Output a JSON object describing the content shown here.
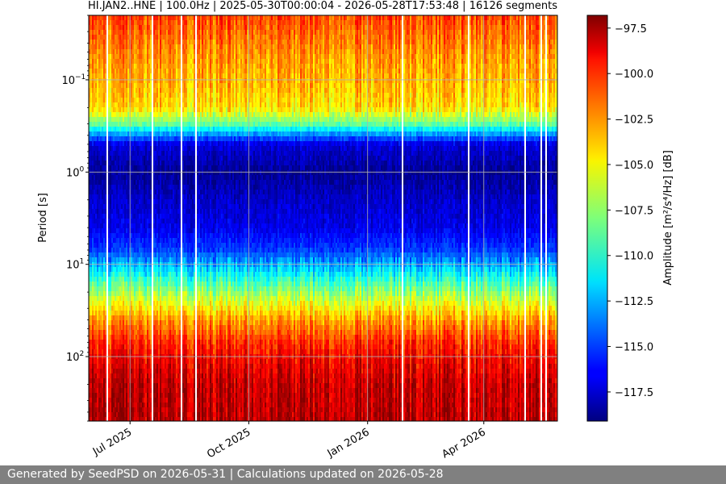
{
  "chart_data": {
    "type": "heatmap",
    "title": "HI.JAN2..HNE | 100.0Hz | 2025-05-30T00:00:04 - 2026-05-28T17:53:48 | 16126 segments",
    "xlabel": "",
    "ylabel": "Period [s]",
    "x_range": [
      "2025-05-30",
      "2026-05-28"
    ],
    "x_ticks": [
      {
        "date": "2025-07-01",
        "label": "Jul 2025"
      },
      {
        "date": "2025-10-01",
        "label": "Oct 2025"
      },
      {
        "date": "2026-01-01",
        "label": "Jan 2026"
      },
      {
        "date": "2026-04-01",
        "label": "Apr 2026"
      }
    ],
    "y_scale": "log",
    "y_inverted": true,
    "y_range_period_s": [
      0.02,
      500
    ],
    "y_ticks": [
      {
        "value": 0.1,
        "base": "10",
        "exp": "−1"
      },
      {
        "value": 1,
        "base": "10",
        "exp": "0"
      },
      {
        "value": 10,
        "base": "10",
        "exp": "1"
      },
      {
        "value": 100,
        "base": "10",
        "exp": "2"
      }
    ],
    "grid": true,
    "colormap": "jet",
    "colorbar": {
      "label": "Amplitude [m²/s⁴/Hz] [dB]",
      "range_db": [
        -119.1,
        -96.8
      ],
      "ticks": [
        "−97.5",
        "−100.0",
        "−102.5",
        "−105.0",
        "−107.5",
        "−110.0",
        "−112.5",
        "−115.0",
        "−117.5"
      ],
      "tick_values": [
        -97.5,
        -100.0,
        -102.5,
        -105.0,
        -107.5,
        -110.0,
        -112.5,
        -115.0,
        -117.5
      ]
    },
    "amplitude_profile_db_by_period_s": [
      [
        0.02,
        -101.0
      ],
      [
        0.035,
        -102.0
      ],
      [
        0.06,
        -103.0
      ],
      [
        0.1,
        -103.5
      ],
      [
        0.2,
        -104.5
      ],
      [
        0.3,
        -108.5
      ],
      [
        0.4,
        -113.5
      ],
      [
        0.5,
        -117.0
      ],
      [
        1.0,
        -118.7
      ],
      [
        2.0,
        -117.5
      ],
      [
        4.0,
        -116.8
      ],
      [
        7.0,
        -115.0
      ],
      [
        10.0,
        -112.5
      ],
      [
        15.0,
        -109.5
      ],
      [
        25.0,
        -106.0
      ],
      [
        40.0,
        -103.0
      ],
      [
        70.0,
        -100.5
      ],
      [
        100.0,
        -99.5
      ],
      [
        200.0,
        -98.3
      ],
      [
        500.0,
        -98.0
      ]
    ]
  },
  "footer": {
    "text": "Generated by SeedPSD on 2026-05-31 | Calculations updated on 2026-05-28"
  }
}
